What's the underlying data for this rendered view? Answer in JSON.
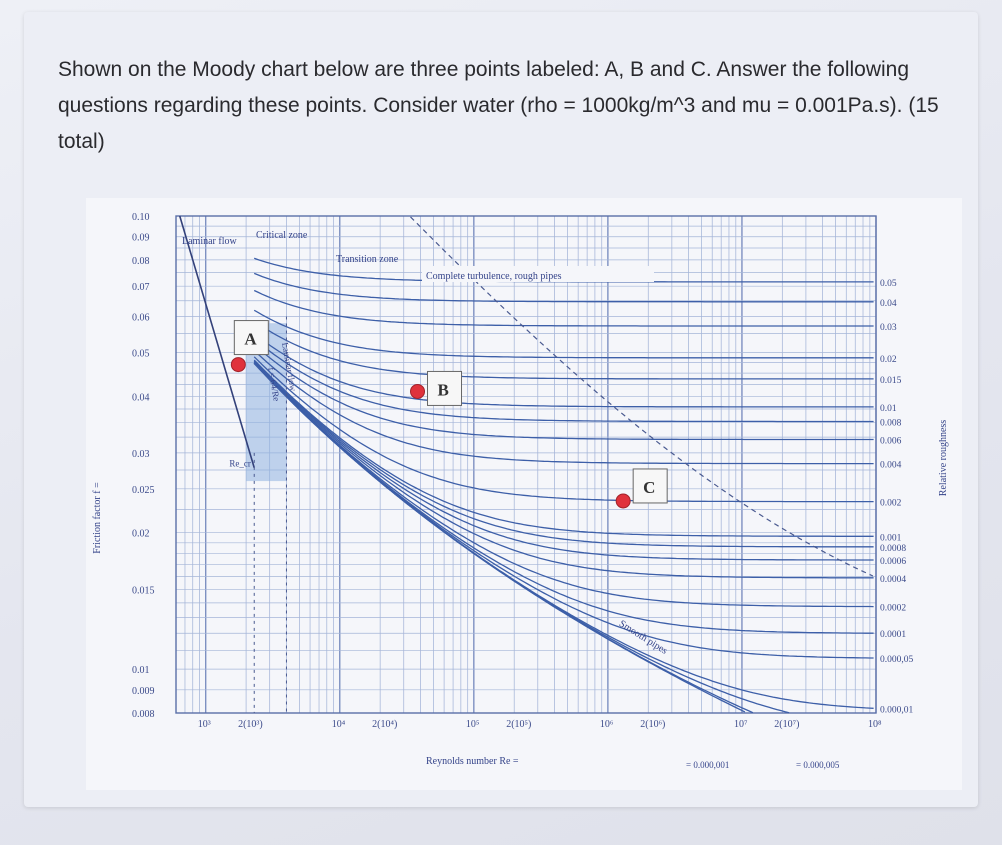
{
  "question": {
    "text": "Shown on the Moody chart below are three points labeled: A, B and C. Answer the following questions regarding these points. Consider water (rho = 1000kg/m^3 and mu = 0.001Pa.s). (15 total)"
  },
  "chart_data": {
    "type": "line",
    "title": "",
    "ylabel": "Friction factor f =",
    "xlabel": "Reynolds number Re =",
    "right_axis_label": "Relative roughness",
    "y_ticks": [
      "0.10",
      "0.09",
      "0.08",
      "0.07",
      "0.06",
      "0.05",
      "0.04",
      "0.03",
      "0.025",
      "0.02",
      "0.015",
      "0.01",
      "0.009",
      "0.008"
    ],
    "x_ticks": [
      "10³",
      "2(10³)",
      "10⁴",
      "2(10⁴)",
      "10⁵",
      "2(10⁵)",
      "10⁶",
      "2(10⁶)",
      "10⁷",
      "2(10⁷)",
      "10⁸"
    ],
    "x_tick_values": [
      1000,
      2000,
      10000,
      20000,
      100000,
      200000,
      1000000,
      2000000,
      10000000,
      20000000,
      100000000
    ],
    "y_tick_values": [
      0.1,
      0.09,
      0.08,
      0.07,
      0.06,
      0.05,
      0.04,
      0.03,
      0.025,
      0.02,
      0.015,
      0.01,
      0.009,
      0.008
    ],
    "xlim": [
      600,
      100000000
    ],
    "ylim": [
      0.008,
      0.1
    ],
    "x_scale": "log",
    "y_scale": "log",
    "grid": true,
    "roughness_labels": [
      "0.05",
      "0.04",
      "0.03",
      "0.02",
      "0.015",
      "0.01",
      "0.008",
      "0.006",
      "0.004",
      "0.002",
      "0.001",
      "0.0008",
      "0.0006",
      "0.0004",
      "0.0002",
      "0.0001",
      "0.000,05",
      "0.000,01"
    ],
    "roughness_values": [
      0.05,
      0.04,
      0.03,
      0.02,
      0.015,
      0.01,
      0.008,
      0.006,
      0.004,
      0.002,
      0.001,
      0.0008,
      0.0006,
      0.0004,
      0.0002,
      0.0001,
      5e-05,
      1e-05
    ],
    "zone_labels": {
      "laminar": "Laminar flow",
      "critical": "Critical zone",
      "transition": "Transition zone",
      "complete": "Complete turbulence, rough pipes",
      "smooth": "Smooth pipes",
      "laminar_line": "Laminar flow",
      "laminar_eq": "f = 64/Re",
      "re_cr": "Re_cr"
    },
    "bottom_labels": {
      "left": "= 0.000,001",
      "right": "= 0.000,005"
    },
    "points": [
      {
        "label": "A",
        "re": 1750,
        "f": 0.047
      },
      {
        "label": "B",
        "re": 38000,
        "f": 0.041
      },
      {
        "label": "C",
        "re": 1300000,
        "f": 0.0235
      }
    ],
    "marker_color": "#e0323c",
    "line_color": "#3d5fa8"
  }
}
